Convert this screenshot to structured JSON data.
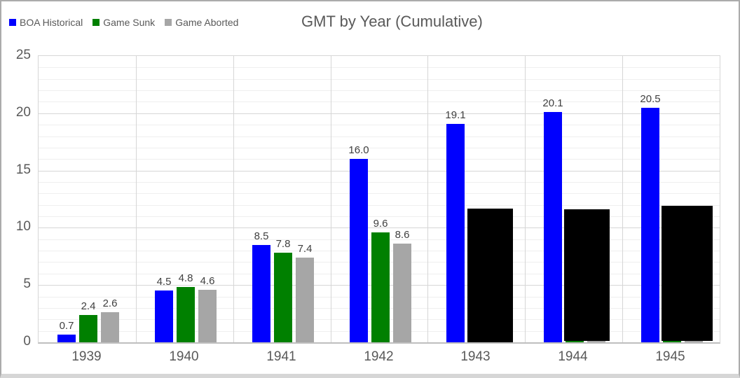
{
  "chart_data": {
    "type": "bar",
    "title": "GMT by Year (Cumulative)",
    "categories": [
      "1939",
      "1940",
      "1941",
      "1942",
      "1943",
      "1944",
      "1945"
    ],
    "series": [
      {
        "name": "BOA Historical",
        "color": "#0000fe",
        "values": [
          0.7,
          4.5,
          8.5,
          16.0,
          19.1,
          20.1,
          20.5
        ],
        "labels": [
          "0.7",
          "4.5",
          "8.5",
          "16.0",
          "19.1",
          "20.1",
          "20.5"
        ]
      },
      {
        "name": "Game Sunk",
        "color": "#008000",
        "values": [
          2.4,
          4.8,
          7.8,
          9.6,
          null,
          0.15,
          0.15
        ],
        "labels": [
          "2.4",
          "4.8",
          "7.8",
          "9.6",
          "",
          "",
          ""
        ]
      },
      {
        "name": "Game Aborted",
        "color": "#a6a6a6",
        "values": [
          2.6,
          4.6,
          7.4,
          8.6,
          null,
          0.15,
          0.15
        ],
        "labels": [
          "2.6",
          "4.6",
          "7.4",
          "8.6",
          "",
          "",
          ""
        ]
      }
    ],
    "black_overlays": [
      {
        "category": "1943",
        "approx_value": 11.7,
        "color": "#000000"
      },
      {
        "category": "1944",
        "approx_value": 11.6,
        "color": "#000000"
      },
      {
        "category": "1945",
        "approx_value": 11.9,
        "color": "#000000"
      }
    ],
    "ylim": [
      0,
      25
    ],
    "y_major_ticks": [
      0,
      5,
      10,
      15,
      20,
      25
    ],
    "y_minor_unit": 1,
    "grid": "on",
    "legend_position": "top-left"
  }
}
